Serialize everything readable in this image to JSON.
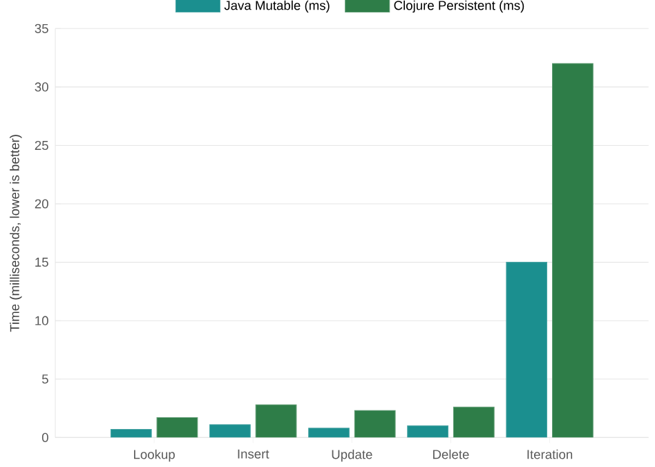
{
  "chart_data": {
    "type": "bar",
    "ylabel": "Time (milliseconds, lower is better)",
    "categories": [
      "Lookup",
      "Insert",
      "Update",
      "Delete",
      "Iteration"
    ],
    "series": [
      {
        "name": "Java Mutable (ms)",
        "color": "#1b8f8f",
        "values": [
          0.7,
          1.1,
          0.8,
          1.0,
          15
        ]
      },
      {
        "name": "Clojure Persistent (ms)",
        "color": "#2e7d48",
        "values": [
          1.7,
          2.8,
          2.3,
          2.6,
          32
        ]
      }
    ],
    "ylim": [
      0,
      35
    ],
    "yticks": [
      0,
      5,
      10,
      15,
      20,
      25,
      30,
      35
    ],
    "grid": "y",
    "legend": "top"
  }
}
